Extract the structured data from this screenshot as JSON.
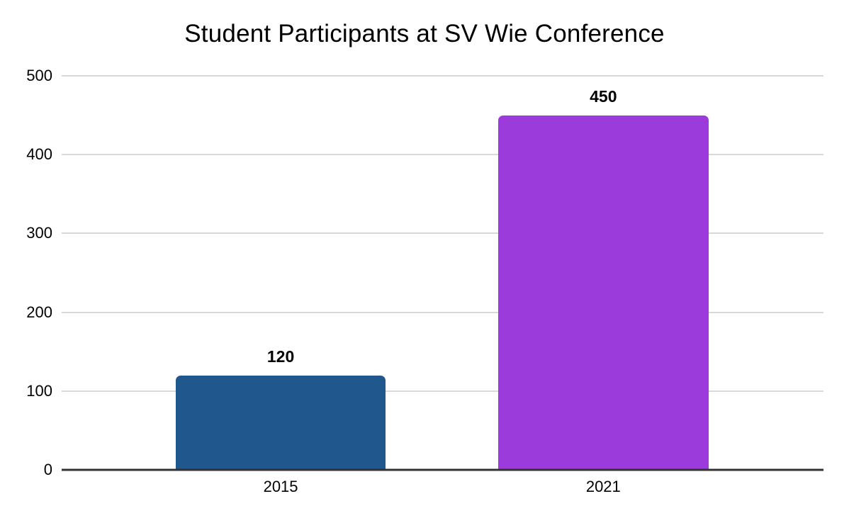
{
  "chart_data": {
    "type": "bar",
    "title": "Student Participants at SV Wie Conference",
    "categories": [
      "2015",
      "2021"
    ],
    "values": [
      120,
      450
    ],
    "data_labels": [
      "120",
      "450"
    ],
    "bar_colors": [
      "#20578c",
      "#9c3bdc"
    ],
    "xlabel": "",
    "ylabel": "",
    "ylim": [
      0,
      500
    ],
    "yticks": [
      0,
      100,
      200,
      300,
      400,
      500
    ],
    "grid": true,
    "legend_position": "none",
    "colors": {
      "background": "#ffffff",
      "gridline": "#d9d9d9",
      "axis_line": "#333333",
      "text": "#000000"
    }
  }
}
